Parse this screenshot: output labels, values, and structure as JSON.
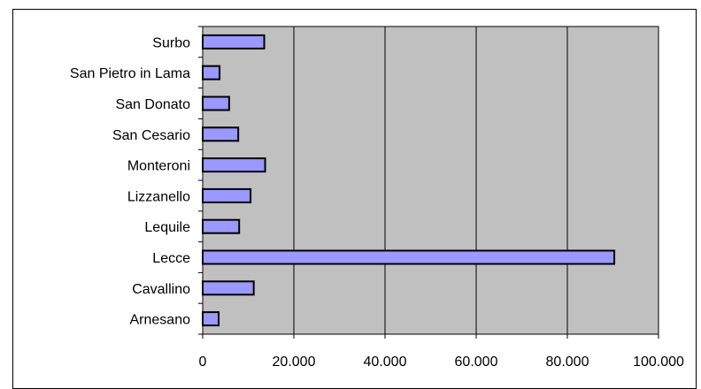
{
  "chart_data": {
    "type": "bar",
    "orientation": "horizontal",
    "categories": [
      "Surbo",
      "San Pietro in Lama",
      "San Donato",
      "San Cesario",
      "Monteroni",
      "Lizzanello",
      "Lequile",
      "Lecce",
      "Cavallino",
      "Arnesano"
    ],
    "values": [
      13500,
      3700,
      5800,
      7800,
      13700,
      10500,
      8000,
      90300,
      11200,
      3500
    ],
    "x_ticks": [
      "0",
      "20.000",
      "40.000",
      "60.000",
      "80.000",
      "100.000"
    ],
    "xlim": [
      0,
      100000
    ],
    "title": "",
    "xlabel": "",
    "ylabel": "",
    "grid": "vertical",
    "legend": "none",
    "colors": {
      "bar_fill": "#9999ff",
      "bar_stroke": "#000000",
      "plot_background": "#c0c0c0",
      "gridline": "#000000"
    }
  }
}
